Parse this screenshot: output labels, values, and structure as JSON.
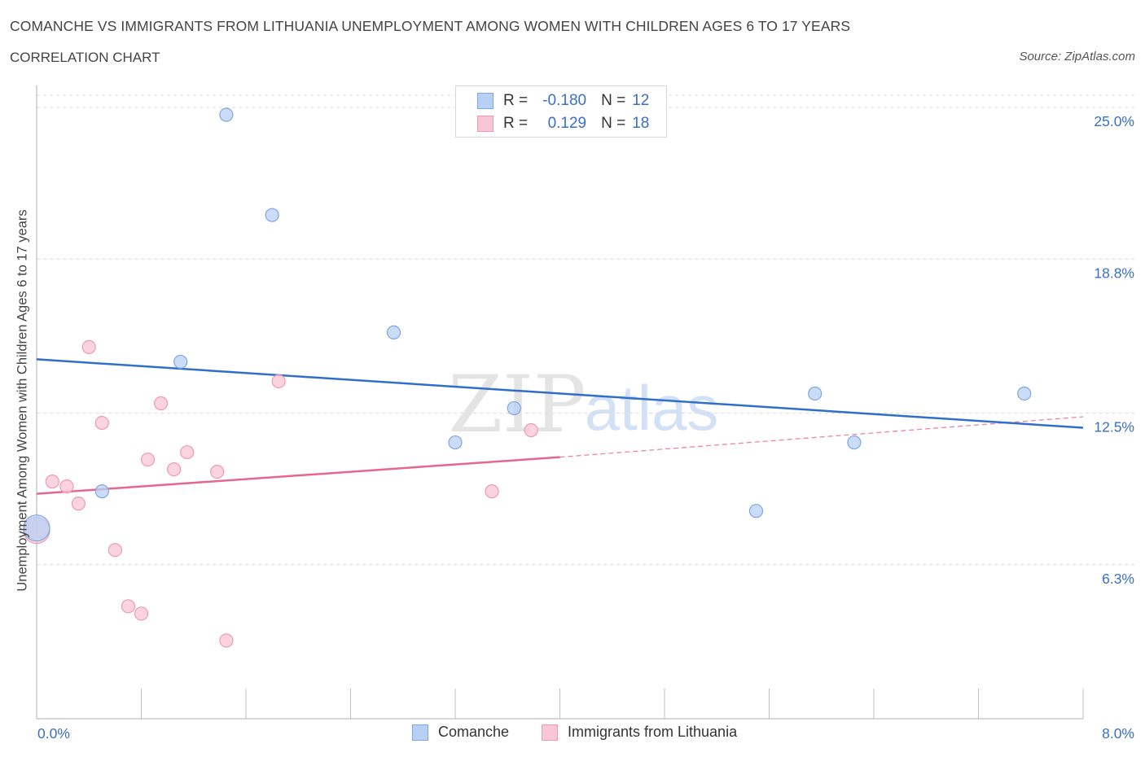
{
  "header": {
    "title": "COMANCHE VS IMMIGRANTS FROM LITHUANIA UNEMPLOYMENT AMONG WOMEN WITH CHILDREN AGES 6 TO 17 YEARS",
    "subtitle": "CORRELATION CHART",
    "source": "Source: ZipAtlas.com"
  },
  "watermark": {
    "zip": "ZIP",
    "atlas": "atlas"
  },
  "legend": {
    "rows": [
      {
        "r_label": "R =",
        "r_value": "-0.180",
        "n_label": "N =",
        "n_value": "12"
      },
      {
        "r_label": "R =",
        "r_value": "0.129",
        "n_label": "N =",
        "n_value": "18"
      }
    ]
  },
  "colors": {
    "comanche_fill": "#b8d0f5",
    "comanche_stroke": "#7ea6e0",
    "comanche_line": "#2f6fcc",
    "lithuania_fill": "#f9c6d5",
    "lithuania_stroke": "#ee99b3",
    "lithuania_line": "#e56690",
    "axis_label": "#3a6fc4",
    "grid": "#dcdcdc"
  },
  "chart_data": {
    "type": "scatter",
    "title": "COMANCHE VS IMMIGRANTS FROM LITHUANIA UNEMPLOYMENT AMONG WOMEN WITH CHILDREN AGES 6 TO 17 YEARS",
    "subtitle": "CORRELATION CHART",
    "xlabel": "",
    "ylabel": "Unemployment Among Women with Children Ages 6 to 17 years",
    "xlim": [
      0,
      8
    ],
    "ylim": [
      0,
      25.5
    ],
    "x_tick_labels": [
      "0.0%",
      "8.0%"
    ],
    "y_ticks": [
      6.3,
      12.5,
      18.8,
      25.0
    ],
    "y_tick_labels": [
      "6.3%",
      "12.5%",
      "18.8%",
      "25.0%"
    ],
    "grid": true,
    "legend_position": "top-center and bottom",
    "series": [
      {
        "name": "Comanche",
        "r": -0.18,
        "n": 12,
        "points": [
          {
            "x": 0.0,
            "y": 7.8,
            "large": true
          },
          {
            "x": 0.5,
            "y": 9.3
          },
          {
            "x": 1.1,
            "y": 14.6
          },
          {
            "x": 1.45,
            "y": 24.7
          },
          {
            "x": 1.8,
            "y": 20.6
          },
          {
            "x": 2.73,
            "y": 15.8
          },
          {
            "x": 3.2,
            "y": 11.3
          },
          {
            "x": 3.65,
            "y": 12.7
          },
          {
            "x": 5.5,
            "y": 8.5
          },
          {
            "x": 5.95,
            "y": 13.3
          },
          {
            "x": 6.25,
            "y": 11.3
          },
          {
            "x": 7.55,
            "y": 13.3
          }
        ],
        "trend": {
          "x": [
            0,
            8
          ],
          "y": [
            14.7,
            11.9
          ]
        }
      },
      {
        "name": "Immigrants from Lithuania",
        "r": 0.129,
        "n": 18,
        "points": [
          {
            "x": 0.0,
            "y": 7.7,
            "large": true
          },
          {
            "x": 0.12,
            "y": 9.7
          },
          {
            "x": 0.23,
            "y": 9.5
          },
          {
            "x": 0.32,
            "y": 8.8
          },
          {
            "x": 0.4,
            "y": 15.2
          },
          {
            "x": 0.5,
            "y": 12.1
          },
          {
            "x": 0.6,
            "y": 6.9
          },
          {
            "x": 0.7,
            "y": 4.6
          },
          {
            "x": 0.8,
            "y": 4.3
          },
          {
            "x": 0.85,
            "y": 10.6
          },
          {
            "x": 0.95,
            "y": 12.9
          },
          {
            "x": 1.05,
            "y": 10.2
          },
          {
            "x": 1.15,
            "y": 10.9
          },
          {
            "x": 1.38,
            "y": 10.1
          },
          {
            "x": 1.45,
            "y": 3.2
          },
          {
            "x": 1.85,
            "y": 13.8
          },
          {
            "x": 3.48,
            "y": 9.3
          },
          {
            "x": 3.78,
            "y": 11.8
          }
        ],
        "trend": {
          "x": [
            0,
            4
          ],
          "y": [
            9.2,
            10.7
          ]
        },
        "trend_extension": {
          "x": [
            4,
            8
          ],
          "y": [
            10.7,
            12.35
          ]
        }
      }
    ]
  }
}
